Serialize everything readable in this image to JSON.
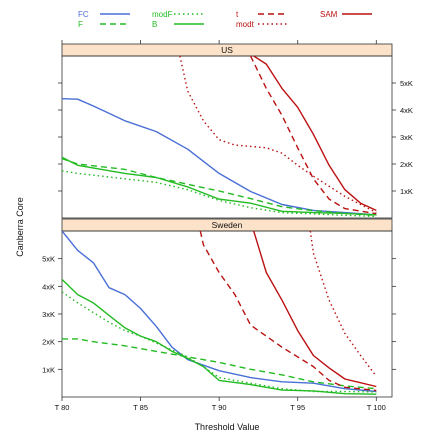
{
  "chart_data": {
    "type": "line",
    "xlabel": "Threshold Value",
    "ylabel": "Canberra Core",
    "xlim": [
      80,
      101
    ],
    "x_ticks": [
      80,
      85,
      90,
      95,
      100
    ],
    "x_tick_labels": [
      "T 80",
      "T 85",
      "T 90",
      "T 95",
      "T 100"
    ],
    "ylim": [
      0,
      6000
    ],
    "y_ticks": [
      1000,
      2000,
      3000,
      4000,
      5000
    ],
    "y_tick_labels": [
      "1xK",
      "2xK",
      "3xK",
      "4xK",
      "5xK"
    ],
    "legend_position": "top",
    "grid": false,
    "legend": [
      {
        "name": "FC",
        "color": "#4a6fd6",
        "dash": "solid"
      },
      {
        "name": "F",
        "color": "#22bb22",
        "dash": "dashed"
      },
      {
        "name": "modF",
        "color": "#22bb22",
        "dash": "dotted"
      },
      {
        "name": "B",
        "color": "#22bb22",
        "dash": "solid"
      },
      {
        "name": "t",
        "color": "#bb1111",
        "dash": "dashed"
      },
      {
        "name": "modt",
        "color": "#bb1111",
        "dash": "dotted"
      },
      {
        "name": "SAM",
        "color": "#bb1111",
        "dash": "solid"
      }
    ],
    "panels": [
      {
        "strip": "US",
        "y_axis_side": "right",
        "series": [
          {
            "name": "FC",
            "x": [
              80,
              81,
              82,
              84,
              86,
              88,
              90,
              92,
              94,
              96,
              98,
              100
            ],
            "y": [
              4420,
              4400,
              4150,
              3600,
              3200,
              2550,
              1650,
              980,
              500,
              280,
              200,
              120
            ]
          },
          {
            "name": "F",
            "x": [
              80,
              81,
              84,
              86,
              88,
              90,
              92,
              94,
              96,
              98,
              100
            ],
            "y": [
              2200,
              2000,
              1800,
              1500,
              1250,
              1000,
              720,
              420,
              270,
              170,
              100
            ]
          },
          {
            "name": "modF",
            "x": [
              80,
              81,
              84,
              86,
              88,
              90,
              92,
              94,
              96,
              98,
              100
            ],
            "y": [
              1750,
              1650,
              1450,
              1320,
              1050,
              650,
              380,
              200,
              150,
              100,
              60
            ]
          },
          {
            "name": "B",
            "x": [
              80,
              81,
              84,
              86,
              88,
              90,
              92,
              94,
              96,
              98,
              100
            ],
            "y": [
              2250,
              1950,
              1650,
              1500,
              1150,
              700,
              550,
              250,
              200,
              170,
              120
            ]
          },
          {
            "name": "t",
            "x": [
              92,
              93,
              94,
              95,
              96,
              97,
              98,
              100
            ],
            "y": [
              6000,
              4800,
              3800,
              2600,
              1450,
              700,
              350,
              160
            ]
          },
          {
            "name": "modt",
            "x": [
              87.5,
              88,
              89,
              90,
              91,
              92,
              93,
              94,
              95,
              96,
              98,
              100
            ],
            "y": [
              6000,
              4700,
              3600,
              2900,
              2700,
              2650,
              2600,
              2400,
              1950,
              1550,
              800,
              200
            ]
          },
          {
            "name": "SAM",
            "x": [
              92.2,
              93,
              94,
              95,
              96,
              97,
              98,
              99,
              100
            ],
            "y": [
              6000,
              5700,
              4800,
              4100,
              3100,
              1950,
              1050,
              550,
              280
            ]
          }
        ]
      },
      {
        "strip": "Sweden",
        "y_axis_side": "left",
        "series": [
          {
            "name": "FC",
            "x": [
              80,
              81,
              82,
              83,
              84,
              85,
              86,
              87,
              88,
              89,
              90,
              92,
              94,
              96,
              98,
              100
            ],
            "y": [
              6000,
              5300,
              4850,
              3950,
              3700,
              3200,
              2550,
              1800,
              1350,
              1150,
              950,
              700,
              550,
              500,
              300,
              200
            ]
          },
          {
            "name": "F",
            "x": [
              80,
              81,
              82,
              84,
              86,
              88,
              90,
              92,
              94,
              96,
              98,
              100
            ],
            "y": [
              2100,
              2100,
              2000,
              1850,
              1650,
              1450,
              1250,
              1000,
              800,
              550,
              400,
              300
            ]
          },
          {
            "name": "modF",
            "x": [
              80,
              81,
              82,
              83,
              84,
              85,
              86,
              87,
              88,
              89,
              90,
              92,
              94,
              96,
              98,
              100
            ],
            "y": [
              3800,
              3400,
              3050,
              2700,
              2400,
              2200,
              1950,
              1700,
              1450,
              1100,
              700,
              500,
              300,
              200,
              200,
              180
            ]
          },
          {
            "name": "B",
            "x": [
              80,
              81,
              82,
              83,
              84,
              85,
              86,
              87,
              88,
              89,
              90,
              92,
              94,
              96,
              98,
              100
            ],
            "y": [
              4250,
              3700,
              3400,
              2950,
              2500,
              2200,
              2000,
              1650,
              1400,
              1100,
              600,
              450,
              250,
              220,
              120,
              100
            ]
          },
          {
            "name": "t",
            "x": [
              88.8,
              89,
              90,
              91,
              92,
              94,
              96,
              97,
              98,
              100
            ],
            "y": [
              6000,
              5500,
              4500,
              3700,
              2600,
              1800,
              1100,
              600,
              350,
              240
            ]
          },
          {
            "name": "modt",
            "x": [
              95.8,
              96,
              97,
              98,
              99,
              100
            ],
            "y": [
              6000,
              5200,
              3500,
              2300,
              1500,
              750
            ]
          },
          {
            "name": "SAM",
            "x": [
              92.2,
              93,
              94,
              95,
              96,
              97,
              98,
              100
            ],
            "y": [
              6000,
              4500,
              3500,
              2400,
              1500,
              1050,
              650,
              380
            ]
          }
        ]
      }
    ]
  }
}
